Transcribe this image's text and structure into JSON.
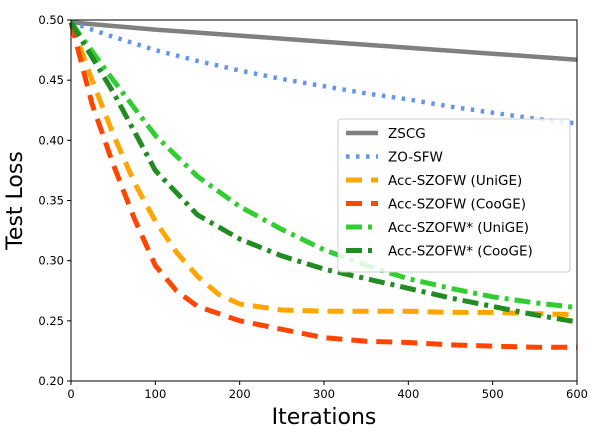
{
  "chart_data": {
    "type": "line",
    "xlabel": "Iterations",
    "ylabel": "Test Loss",
    "xlim": [
      0,
      600
    ],
    "ylim": [
      0.2,
      0.5
    ],
    "xticks": [
      "0",
      "100",
      "200",
      "300",
      "400",
      "500",
      "600"
    ],
    "yticks": [
      "0.20",
      "0.25",
      "0.30",
      "0.35",
      "0.40",
      "0.45",
      "0.50"
    ],
    "grid": false,
    "legend_position": "center-right",
    "series": [
      {
        "name": "ZSCG",
        "color": "#808080",
        "style": "solid",
        "x": [
          0,
          100,
          200,
          300,
          400,
          500,
          600
        ],
        "y": [
          0.498,
          0.492,
          0.487,
          0.482,
          0.477,
          0.472,
          0.467
        ]
      },
      {
        "name": "ZO-SFW",
        "color": "#6495ED",
        "style": "dotted",
        "x": [
          0,
          50,
          100,
          150,
          200,
          250,
          300,
          350,
          400,
          450,
          500,
          550,
          600
        ],
        "y": [
          0.498,
          0.486,
          0.475,
          0.466,
          0.458,
          0.451,
          0.445,
          0.439,
          0.434,
          0.428,
          0.423,
          0.418,
          0.414
        ]
      },
      {
        "name": "Acc-SZOFW (UniGE)",
        "color": "#FFA500",
        "style": "dashed",
        "x": [
          0,
          25,
          50,
          75,
          100,
          125,
          150,
          175,
          200,
          250,
          300,
          350,
          400,
          450,
          500,
          550,
          600
        ],
        "y": [
          0.498,
          0.45,
          0.405,
          0.365,
          0.333,
          0.307,
          0.287,
          0.272,
          0.264,
          0.259,
          0.258,
          0.258,
          0.258,
          0.257,
          0.257,
          0.256,
          0.255
        ]
      },
      {
        "name": "Acc-SZOFW (CooGE)",
        "color": "#FF4500",
        "style": "dashed",
        "x": [
          0,
          25,
          50,
          75,
          100,
          125,
          150,
          200,
          250,
          300,
          350,
          400,
          450,
          500,
          550,
          600
        ],
        "y": [
          0.498,
          0.43,
          0.38,
          0.335,
          0.296,
          0.275,
          0.262,
          0.25,
          0.243,
          0.236,
          0.233,
          0.232,
          0.23,
          0.229,
          0.228,
          0.228
        ]
      },
      {
        "name": "Acc-SZOFW* (UniGE)",
        "color": "#32CD32",
        "style": "dashdot",
        "x": [
          0,
          50,
          100,
          150,
          200,
          250,
          300,
          350,
          400,
          450,
          500,
          550,
          600
        ],
        "y": [
          0.498,
          0.45,
          0.404,
          0.37,
          0.345,
          0.326,
          0.309,
          0.296,
          0.285,
          0.277,
          0.27,
          0.265,
          0.261
        ]
      },
      {
        "name": "Acc-SZOFW* (CooGE)",
        "color": "#228B22",
        "style": "dashdot",
        "x": [
          0,
          50,
          100,
          150,
          200,
          250,
          300,
          350,
          400,
          450,
          500,
          550,
          600
        ],
        "y": [
          0.498,
          0.44,
          0.375,
          0.338,
          0.318,
          0.304,
          0.293,
          0.285,
          0.277,
          0.269,
          0.262,
          0.255,
          0.249
        ]
      }
    ]
  }
}
